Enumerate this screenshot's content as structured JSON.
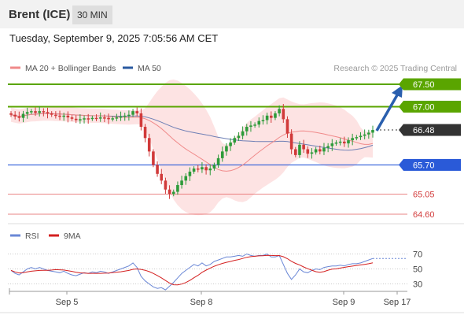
{
  "header": {
    "title": "Brent (ICE)",
    "timeframe": "30 MIN",
    "datetime": "Tuesday, September 9, 2025 7:05:56 AM CET"
  },
  "legend": {
    "ma20_label": "MA 20 + Bollinger Bands",
    "ma50_label": "MA 50",
    "copyright": "Research © 2025 Trading Central",
    "rsi_label": "RSI",
    "rsi_ma_label": "9MA"
  },
  "colors": {
    "resistance": "#5aa500",
    "support": "#2a5ad8",
    "current": "#333333",
    "minor": "#e35d5d",
    "candle_up": "#2e9b3a",
    "candle_down": "#d13a3a",
    "ma20": "#f08a8a",
    "ma50": "#6e7fb5",
    "bollinger": "#fde0e0",
    "rsi": "#6a87d6",
    "rsi_ma": "#d42020",
    "arrow": "#2a5fae"
  },
  "chart_data": {
    "type": "candlestick",
    "x_labels": [
      "Sep 5",
      "Sep 8",
      "Sep 9",
      "Sep 17"
    ],
    "levels": [
      {
        "value": "67.50",
        "kind": "resistance"
      },
      {
        "value": "67.00",
        "kind": "resistance"
      },
      {
        "value": "66.48",
        "kind": "current"
      },
      {
        "value": "65.70",
        "kind": "support"
      },
      {
        "value": "65.05",
        "kind": "minor"
      },
      {
        "value": "64.60",
        "kind": "minor"
      }
    ],
    "ylim": [
      64.45,
      67.8
    ],
    "closes": [
      66.82,
      66.78,
      66.75,
      66.84,
      66.88,
      66.9,
      66.86,
      66.9,
      66.88,
      66.85,
      66.82,
      66.8,
      66.78,
      66.8,
      66.76,
      66.73,
      66.7,
      66.72,
      66.74,
      66.73,
      66.75,
      66.74,
      66.76,
      66.75,
      66.72,
      66.74,
      66.76,
      66.78,
      66.8,
      66.82,
      66.9,
      66.85,
      66.55,
      66.3,
      66.0,
      65.7,
      65.5,
      65.35,
      65.15,
      65.05,
      65.1,
      65.25,
      65.35,
      65.45,
      65.55,
      65.62,
      65.6,
      65.65,
      65.58,
      65.62,
      65.7,
      65.85,
      66.0,
      66.12,
      66.2,
      66.3,
      66.35,
      66.45,
      66.55,
      66.58,
      66.6,
      66.68,
      66.7,
      66.8,
      66.75,
      66.85,
      66.95,
      66.72,
      66.4,
      66.05,
      65.92,
      66.15,
      66.05,
      65.95,
      65.98,
      66.05,
      66.0,
      66.08,
      66.12,
      66.18,
      66.2,
      66.22,
      66.18,
      66.25,
      66.3,
      66.32,
      66.35,
      66.38,
      66.42,
      66.48
    ],
    "rsi": {
      "ticks": [
        70,
        50,
        30
      ],
      "values": [
        48,
        44,
        42,
        46,
        50,
        52,
        50,
        52,
        50,
        48,
        47,
        46,
        45,
        47,
        44,
        42,
        41,
        43,
        45,
        44,
        46,
        45,
        47,
        46,
        44,
        46,
        48,
        50,
        52,
        54,
        58,
        52,
        40,
        34,
        30,
        26,
        24,
        25,
        22,
        27,
        32,
        38,
        44,
        48,
        52,
        56,
        54,
        58,
        54,
        56,
        60,
        62,
        64,
        66,
        66,
        67,
        68,
        67,
        70,
        68,
        67,
        68,
        68,
        70,
        66,
        66,
        68,
        56,
        44,
        36,
        42,
        50,
        46,
        45,
        48,
        50,
        49,
        52,
        53,
        54,
        54,
        55,
        54,
        56,
        57,
        57,
        58,
        60,
        62,
        64
      ]
    }
  }
}
